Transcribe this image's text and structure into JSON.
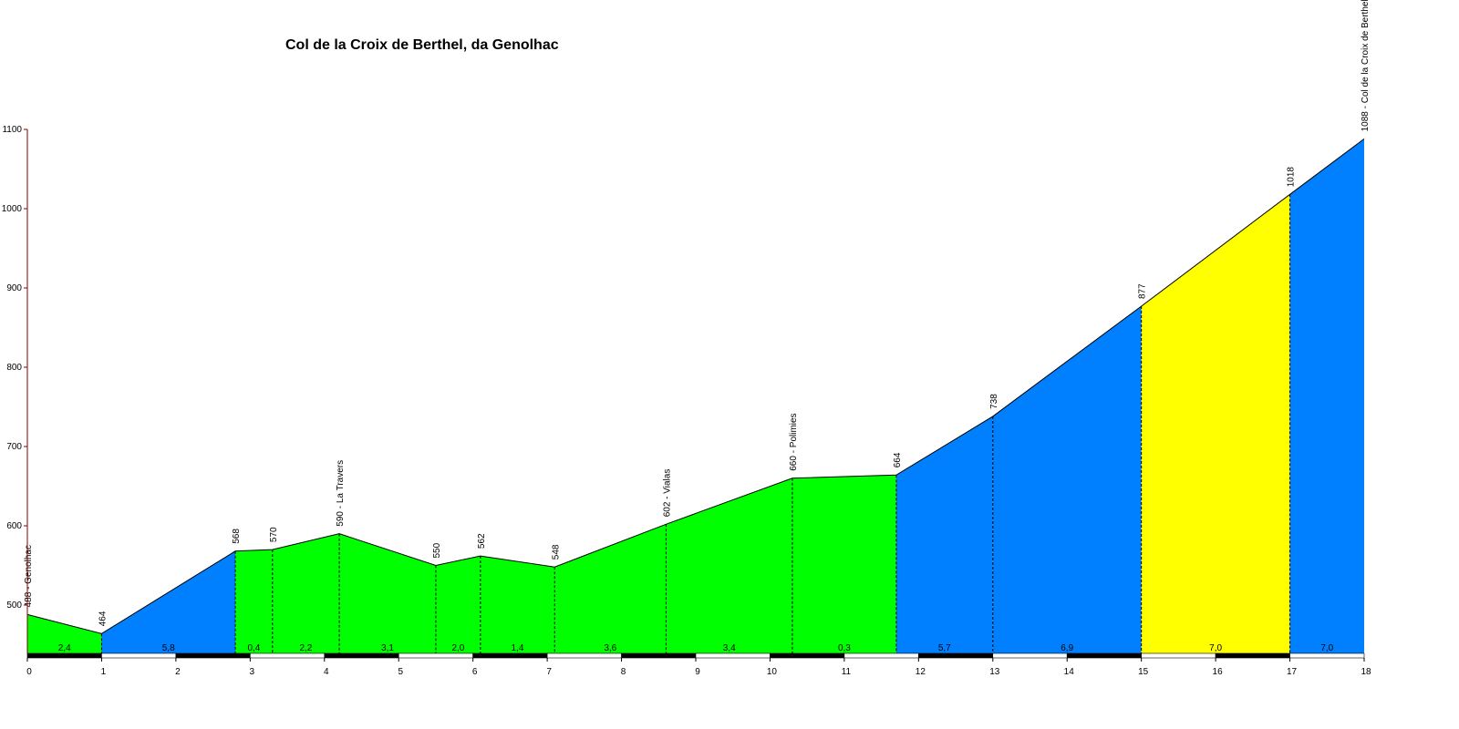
{
  "chart_data": {
    "type": "area",
    "title": "Col de la Croix de Berthel, da Genolhac",
    "xlabel": "",
    "ylabel": "",
    "xlim": [
      0,
      18
    ],
    "ylim": [
      440,
      1100
    ],
    "x_ticks": [
      "0",
      "1",
      "2",
      "3",
      "4",
      "5",
      "6",
      "7",
      "8",
      "9",
      "10",
      "11",
      "12",
      "13",
      "14",
      "15",
      "16",
      "17",
      "18"
    ],
    "y_ticks": [
      "500",
      "600",
      "700",
      "800",
      "900",
      "1000",
      "1100"
    ],
    "profile": [
      {
        "x": 0,
        "y": 488,
        "label": "488 - Genolhac"
      },
      {
        "x": 1,
        "y": 464,
        "label": "464"
      },
      {
        "x": 2.8,
        "y": 568,
        "label": "568"
      },
      {
        "x": 3.3,
        "y": 570,
        "label": "570"
      },
      {
        "x": 4.2,
        "y": 590,
        "label": "590 - La Travers"
      },
      {
        "x": 5.5,
        "y": 550,
        "label": "550"
      },
      {
        "x": 6.1,
        "y": 562,
        "label": "562"
      },
      {
        "x": 7.1,
        "y": 548,
        "label": "548"
      },
      {
        "x": 8.6,
        "y": 602,
        "label": "602 - Vialas"
      },
      {
        "x": 10.3,
        "y": 660,
        "label": "660 - Polimies"
      },
      {
        "x": 11.7,
        "y": 664,
        "label": "664"
      },
      {
        "x": 13,
        "y": 738,
        "label": "738"
      },
      {
        "x": 15,
        "y": 877,
        "label": "877"
      },
      {
        "x": 17,
        "y": 1018,
        "label": "1018"
      },
      {
        "x": 18,
        "y": 1088,
        "label": "1088 - Col de la Croix de Berthel"
      }
    ],
    "segments": [
      {
        "from": 0,
        "to": 1,
        "gradient": "2,4",
        "color": "#00ff00"
      },
      {
        "from": 1,
        "to": 2.8,
        "gradient": "5,8",
        "color": "#0080ff"
      },
      {
        "from": 2.8,
        "to": 3.3,
        "gradient": "0,4",
        "color": "#00ff00"
      },
      {
        "from": 3.3,
        "to": 4.2,
        "gradient": "2,2",
        "color": "#00ff00"
      },
      {
        "from": 4.2,
        "to": 5.5,
        "gradient": "3,1",
        "color": "#00ff00"
      },
      {
        "from": 5.5,
        "to": 6.1,
        "gradient": "2,0",
        "color": "#00ff00"
      },
      {
        "from": 6.1,
        "to": 7.1,
        "gradient": "1,4",
        "color": "#00ff00"
      },
      {
        "from": 7.1,
        "to": 8.6,
        "gradient": "3,6",
        "color": "#00ff00"
      },
      {
        "from": 8.6,
        "to": 10.3,
        "gradient": "3,4",
        "color": "#00ff00"
      },
      {
        "from": 10.3,
        "to": 11.7,
        "gradient": "0,3",
        "color": "#00ff00"
      },
      {
        "from": 11.7,
        "to": 13,
        "gradient": "5,7",
        "color": "#0080ff"
      },
      {
        "from": 13,
        "to": 15,
        "gradient": "6,9",
        "color": "#0080ff"
      },
      {
        "from": 15,
        "to": 17,
        "gradient": "7,0",
        "color": "#ffff00"
      },
      {
        "from": 17,
        "to": 18,
        "gradient": "7,0",
        "color": "#0080ff"
      }
    ],
    "axis_color": "#800000"
  }
}
